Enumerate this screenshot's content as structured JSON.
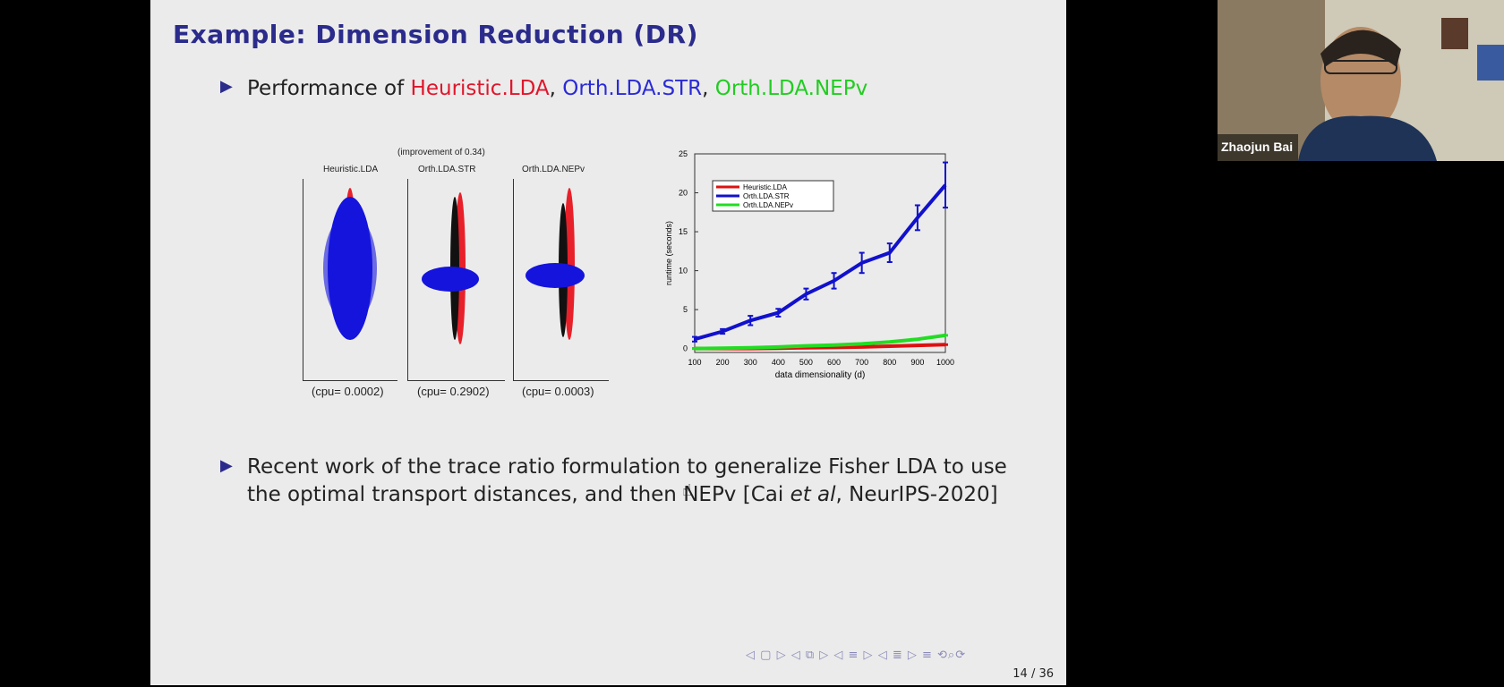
{
  "slide": {
    "title": "Example: Dimension Reduction (DR)",
    "bullet1": {
      "prefix": "Performance of ",
      "m1": "Heuristic.LDA",
      "sep1": ", ",
      "m2": "Orth.LDA.STR",
      "sep2": ", ",
      "m3": "Orth.LDA.NEPv"
    },
    "bullet2": {
      "line1": "Recent work of the trace ratio formulation to generalize Fisher LDA to use",
      "line2a": "the optimal transport distances, and then NEPv [Cai ",
      "line2b": "et al",
      "line2c": ", NeurIPS-2020]"
    },
    "page": "14 / 36"
  },
  "scatter": {
    "improvement": "(improvement of 0.34)",
    "panels": [
      {
        "title": "Heuristic.LDA",
        "cpu": "(cpu= 0.0002)"
      },
      {
        "title": "Orth.LDA.STR",
        "cpu": "(cpu= 0.2902)"
      },
      {
        "title": "Orth.LDA.NEPv",
        "cpu": "(cpu= 0.0003)"
      }
    ]
  },
  "chart_data": {
    "type": "line",
    "xlabel": "data dimensionality (d)",
    "ylabel": "runtime (seconds)",
    "x": [
      100,
      200,
      300,
      400,
      500,
      600,
      700,
      800,
      900,
      1000
    ],
    "xticks": [
      100,
      200,
      300,
      400,
      500,
      600,
      700,
      800,
      900,
      1000
    ],
    "yticks": [
      0,
      5,
      10,
      15,
      20,
      25
    ],
    "xlim": [
      100,
      1000
    ],
    "ylim": [
      -0.5,
      25
    ],
    "legend_position": "top-left",
    "grid": false,
    "series": [
      {
        "name": "Heuristic.LDA",
        "color": "#dd1111",
        "values": [
          0.0,
          0.0,
          0.0,
          0.05,
          0.1,
          0.15,
          0.2,
          0.3,
          0.4,
          0.5
        ],
        "err": [
          0.05,
          0.05,
          0.05,
          0.05,
          0.05,
          0.05,
          0.05,
          0.05,
          0.05,
          0.05
        ]
      },
      {
        "name": "Orth.LDA.STR",
        "color": "#1111cc",
        "values": [
          1.2,
          2.2,
          3.6,
          4.6,
          7.0,
          8.7,
          11.0,
          12.3,
          16.8,
          21.0
        ],
        "err": [
          0.3,
          0.3,
          0.6,
          0.5,
          0.7,
          1.0,
          1.3,
          1.2,
          1.6,
          2.9
        ]
      },
      {
        "name": "Orth.LDA.NEPv",
        "color": "#22dd22",
        "values": [
          0.0,
          0.05,
          0.1,
          0.2,
          0.35,
          0.45,
          0.6,
          0.85,
          1.2,
          1.7
        ],
        "err": [
          0.05,
          0.05,
          0.05,
          0.05,
          0.05,
          0.05,
          0.05,
          0.05,
          0.05,
          0.05
        ]
      }
    ]
  },
  "nav_icons": [
    "arrow-left-icon",
    "frame-icon",
    "arrow-right-icon",
    "subsection-icon",
    "section-icon",
    "align-icon",
    "search-icon",
    "undo-icon",
    "redo-icon"
  ],
  "video": {
    "participant_name": "Zhaojun Bai"
  }
}
